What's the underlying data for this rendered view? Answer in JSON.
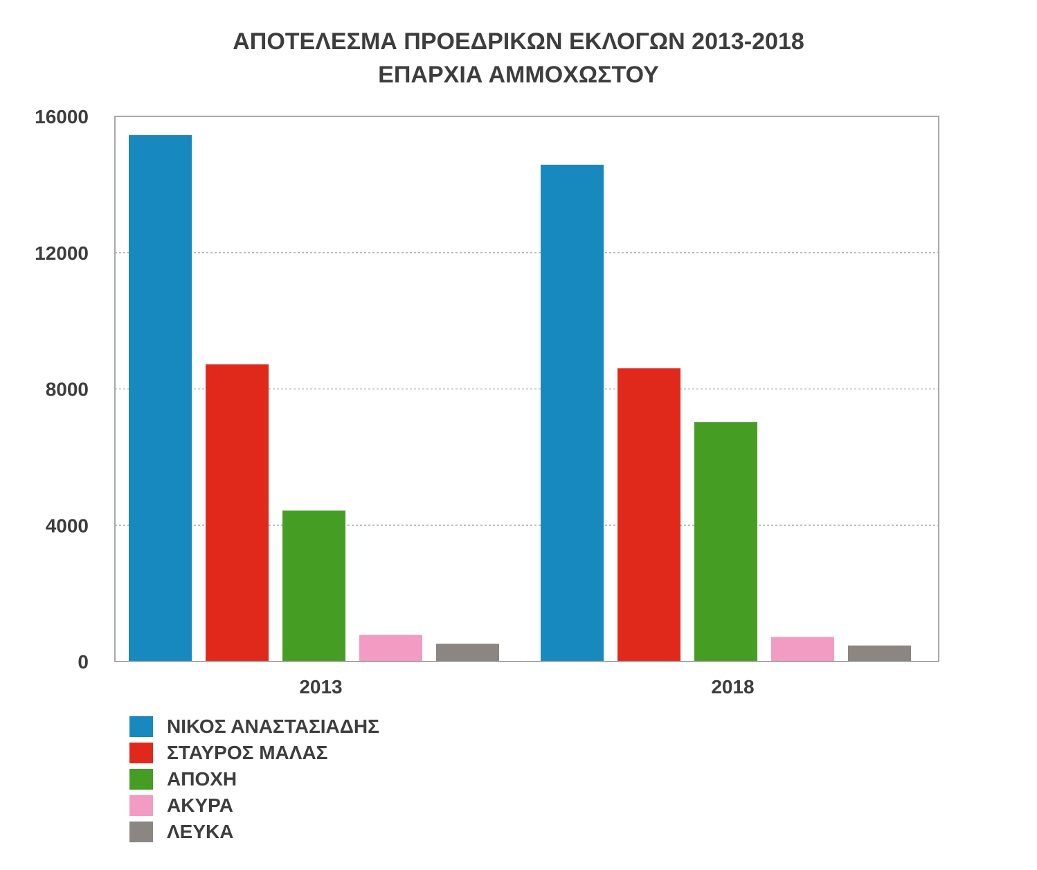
{
  "chart_data": {
    "type": "bar",
    "title": "ΑΠΟΤΕΛΕΣΜΑ ΠΡΟΕΔΡΙΚΩΝ ΕΚΛΟΓΩΝ 2013-2018",
    "subtitle": "ΕΠΑΡΧΙΑ ΑΜΜΟΧΩΣΤΟΥ",
    "categories": [
      "2013",
      "2018"
    ],
    "ylim": [
      0,
      16000
    ],
    "yticks": [
      "0",
      "4000",
      "8000",
      "12000",
      "16000"
    ],
    "grid": true,
    "legend_position": "bottom-left",
    "series": [
      {
        "name": "ΝΙΚΟΣ ΑΝΑΣΤΑΣΙΑΔΗΣ",
        "color": "#1889be",
        "values": [
          15450,
          14580
        ]
      },
      {
        "name": "ΣΤΑΥΡΟΣ ΜΑΛΑΣ",
        "color": "#e1291b",
        "values": [
          8720,
          8610
        ]
      },
      {
        "name": "ΑΠΟΧΗ",
        "color": "#469d24",
        "values": [
          4430,
          7030
        ]
      },
      {
        "name": "ΑΚΥΡΑ",
        "color": "#f29cc3",
        "values": [
          780,
          720
        ]
      },
      {
        "name": "ΛΕΥΚΑ",
        "color": "#8b8682",
        "values": [
          520,
          470
        ]
      }
    ]
  }
}
